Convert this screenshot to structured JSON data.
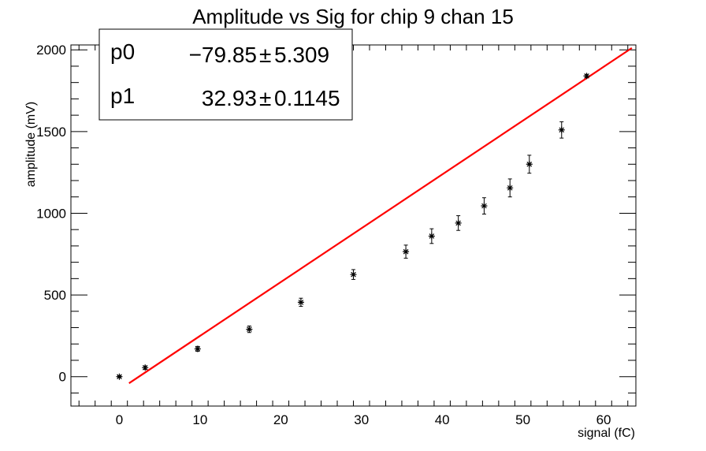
{
  "chart_data": {
    "type": "scatter",
    "title": "Amplitude vs Sig for chip 9 chan 15",
    "xlabel": "signal (fC)",
    "ylabel": "amplitude (mV)",
    "xlim": [
      -6,
      64
    ],
    "ylim": [
      -180,
      2030
    ],
    "x_ticks": [
      0,
      10,
      20,
      30,
      40,
      50,
      60
    ],
    "y_ticks": [
      0,
      500,
      1000,
      1500,
      2000
    ],
    "grid": false,
    "legend": "none",
    "series": [
      {
        "marker": "star",
        "color": "#000000",
        "x": [
          0.0,
          3.2,
          9.7,
          16.1,
          22.5,
          29.0,
          35.5,
          38.7,
          42.0,
          45.2,
          48.4,
          50.8,
          54.8,
          57.9
        ],
        "y": [
          0,
          55,
          170,
          290,
          455,
          625,
          765,
          860,
          940,
          1045,
          1155,
          1300,
          1510,
          1840
        ],
        "yerr": [
          5,
          10,
          15,
          20,
          25,
          30,
          40,
          45,
          45,
          50,
          55,
          55,
          50,
          10
        ]
      }
    ],
    "fit": {
      "color": "#ff0000",
      "x_range": [
        1.2,
        63.5
      ],
      "p0": -79.85,
      "p1": 32.93
    },
    "stats_box": {
      "rows": [
        {
          "name": "p0",
          "value": "−79.85",
          "pm": "±",
          "error": "5.309"
        },
        {
          "name": "p1",
          "value": "32.93",
          "pm": "±",
          "error": "0.1145"
        }
      ]
    }
  }
}
